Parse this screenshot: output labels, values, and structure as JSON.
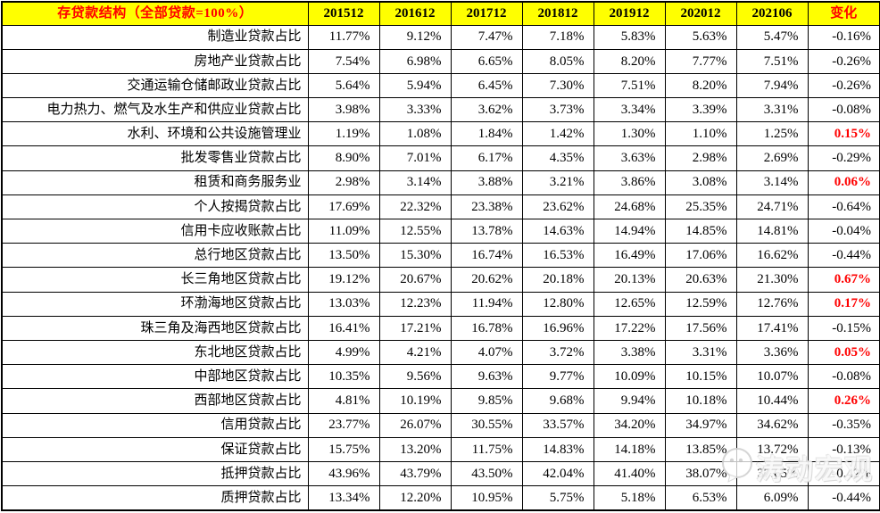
{
  "table": {
    "title": "存贷款结构（全部贷款=100%）",
    "columns": [
      "201512",
      "201612",
      "201712",
      "201812",
      "201912",
      "202012",
      "202106"
    ],
    "change_label": "变化",
    "rows": [
      {
        "label": "制造业贷款占比",
        "values": [
          "11.77%",
          "9.12%",
          "7.47%",
          "7.18%",
          "5.83%",
          "5.63%",
          "5.47%"
        ],
        "change": "-0.16%",
        "change_positive": false
      },
      {
        "label": "房地产业贷款占比",
        "values": [
          "7.54%",
          "6.98%",
          "6.65%",
          "8.05%",
          "8.20%",
          "7.77%",
          "7.51%"
        ],
        "change": "-0.26%",
        "change_positive": false
      },
      {
        "label": "交通运输仓储邮政业贷款占比",
        "values": [
          "5.64%",
          "5.94%",
          "6.45%",
          "7.30%",
          "7.51%",
          "8.20%",
          "7.94%"
        ],
        "change": "-0.26%",
        "change_positive": false
      },
      {
        "label": "电力热力、燃气及水生产和供应业贷款占比",
        "values": [
          "3.98%",
          "3.33%",
          "3.62%",
          "3.73%",
          "3.34%",
          "3.39%",
          "3.31%"
        ],
        "change": "-0.08%",
        "change_positive": false
      },
      {
        "label": "水利、环境和公共设施管理业",
        "values": [
          "1.19%",
          "1.08%",
          "1.84%",
          "1.42%",
          "1.30%",
          "1.10%",
          "1.25%"
        ],
        "change": "0.15%",
        "change_positive": true
      },
      {
        "label": "批发零售业贷款占比",
        "values": [
          "8.90%",
          "7.01%",
          "6.17%",
          "4.35%",
          "3.63%",
          "2.98%",
          "2.69%"
        ],
        "change": "-0.29%",
        "change_positive": false
      },
      {
        "label": "租赁和商务服务业",
        "values": [
          "2.98%",
          "3.14%",
          "3.88%",
          "3.21%",
          "3.86%",
          "3.08%",
          "3.14%"
        ],
        "change": "0.06%",
        "change_positive": true
      },
      {
        "label": "个人按揭贷款占比",
        "values": [
          "17.69%",
          "22.32%",
          "23.38%",
          "23.62%",
          "24.68%",
          "25.35%",
          "24.71%"
        ],
        "change": "-0.64%",
        "change_positive": false
      },
      {
        "label": "信用卡应收账款占比",
        "values": [
          "11.09%",
          "12.55%",
          "13.78%",
          "14.63%",
          "14.94%",
          "14.85%",
          "14.81%"
        ],
        "change": "-0.04%",
        "change_positive": false
      },
      {
        "label": "总行地区贷款占比",
        "values": [
          "13.50%",
          "15.30%",
          "16.74%",
          "16.53%",
          "16.49%",
          "17.06%",
          "16.62%"
        ],
        "change": "-0.44%",
        "change_positive": false
      },
      {
        "label": "长三角地区贷款占比",
        "values": [
          "19.12%",
          "20.67%",
          "20.62%",
          "20.18%",
          "20.13%",
          "20.63%",
          "21.30%"
        ],
        "change": "0.67%",
        "change_positive": true
      },
      {
        "label": "环渤海地区贷款占比",
        "values": [
          "13.03%",
          "12.23%",
          "11.94%",
          "12.80%",
          "12.65%",
          "12.59%",
          "12.76%"
        ],
        "change": "0.17%",
        "change_positive": true
      },
      {
        "label": "珠三角及海西地区贷款占比",
        "values": [
          "16.41%",
          "17.21%",
          "16.78%",
          "16.96%",
          "17.22%",
          "17.56%",
          "17.41%"
        ],
        "change": "-0.15%",
        "change_positive": false
      },
      {
        "label": "东北地区贷款占比",
        "values": [
          "4.99%",
          "4.21%",
          "4.07%",
          "3.72%",
          "3.38%",
          "3.31%",
          "3.36%"
        ],
        "change": "0.05%",
        "change_positive": true
      },
      {
        "label": "中部地区贷款占比",
        "values": [
          "10.35%",
          "9.56%",
          "9.63%",
          "9.77%",
          "10.09%",
          "10.15%",
          "10.07%"
        ],
        "change": "-0.08%",
        "change_positive": false
      },
      {
        "label": "西部地区贷款占比",
        "values": [
          "4.81%",
          "10.19%",
          "9.85%",
          "9.68%",
          "9.94%",
          "10.18%",
          "10.44%"
        ],
        "change": "0.26%",
        "change_positive": true
      },
      {
        "label": "信用贷款占比",
        "values": [
          "23.77%",
          "26.07%",
          "30.55%",
          "33.57%",
          "34.20%",
          "34.97%",
          "34.62%"
        ],
        "change": "-0.35%",
        "change_positive": false
      },
      {
        "label": "保证贷款占比",
        "values": [
          "15.75%",
          "13.20%",
          "11.75%",
          "14.83%",
          "14.18%",
          "13.85%",
          "13.72%"
        ],
        "change": "-0.13%",
        "change_positive": false
      },
      {
        "label": "抵押贷款占比",
        "values": [
          "43.96%",
          "43.79%",
          "43.50%",
          "42.04%",
          "41.40%",
          "38.07%",
          "37.65%"
        ],
        "change": "-0.42%",
        "change_positive": false
      },
      {
        "label": "质押贷款占比",
        "values": [
          "13.34%",
          "12.20%",
          "10.95%",
          "5.75%",
          "5.18%",
          "6.53%",
          "6.09%"
        ],
        "change": "-0.44%",
        "change_positive": false
      }
    ]
  },
  "watermark": {
    "text": "涛动宏观"
  },
  "colors": {
    "header_bg": "#FFFF00",
    "title_color": "#FF0000",
    "positive_change": "#FF0000",
    "text": "#000000",
    "border": "#000000",
    "background": "#FFFFFF"
  }
}
